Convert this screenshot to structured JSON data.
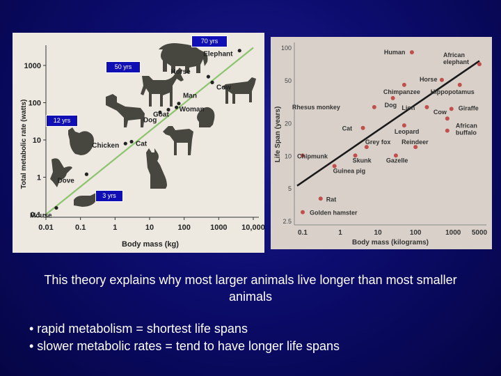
{
  "chart_data": [
    {
      "type": "scatter",
      "xlabel": "Body mass (kg)",
      "ylabel": "Total metabolic rate (watts)",
      "x_scale": "log",
      "y_scale": "log",
      "xticks": [
        "0.01",
        "0.1",
        "1",
        "10",
        "100",
        "1000",
        "10,000"
      ],
      "yticks": [
        "1000",
        "100",
        "10",
        "1",
        "0.1"
      ],
      "points": [
        {
          "label": "Elephant",
          "x": 4000,
          "y": 2500
        },
        {
          "label": "Horse",
          "x": 500,
          "y": 500
        },
        {
          "label": "Cow",
          "x": 650,
          "y": 350
        },
        {
          "label": "Man",
          "x": 70,
          "y": 95
        },
        {
          "label": "Woman",
          "x": 60,
          "y": 75
        },
        {
          "label": "Dog",
          "x": 20,
          "y": 55
        },
        {
          "label": "Goat",
          "x": 35,
          "y": 65
        },
        {
          "label": "Chicken",
          "x": 2,
          "y": 8
        },
        {
          "label": "Cat",
          "x": 3,
          "y": 9
        },
        {
          "label": "Dove",
          "x": 0.15,
          "y": 1.2
        },
        {
          "label": "Mouse",
          "x": 0.02,
          "y": 0.15
        }
      ],
      "fit_line": {
        "x": [
          0.01,
          10000
        ],
        "y": [
          0.1,
          3000
        ]
      },
      "annotations": [
        "70 yrs",
        "50 yrs",
        "12 yrs",
        "3 yrs"
      ]
    },
    {
      "type": "scatter",
      "xlabel": "Body mass (kilograms)",
      "ylabel": "Life Span (years)",
      "x_scale": "log",
      "y_scale": "log",
      "xticks": [
        "0.1",
        "1",
        "10",
        "100",
        "1000",
        "5000"
      ],
      "yticks": [
        "100",
        "50",
        "20",
        "10",
        "5",
        "2.5"
      ],
      "points": [
        {
          "label": "Human",
          "x": 80,
          "y": 90
        },
        {
          "label": "African elephant",
          "x": 5000,
          "y": 70
        },
        {
          "label": "Horse",
          "x": 500,
          "y": 50
        },
        {
          "label": "Chimpanzee",
          "x": 50,
          "y": 45
        },
        {
          "label": "Hippopotamus",
          "x": 1500,
          "y": 45
        },
        {
          "label": "Dog",
          "x": 25,
          "y": 34
        },
        {
          "label": "Rhesus monkey",
          "x": 8,
          "y": 28
        },
        {
          "label": "Lion",
          "x": 200,
          "y": 28
        },
        {
          "label": "Giraffe",
          "x": 900,
          "y": 27
        },
        {
          "label": "Cow",
          "x": 700,
          "y": 22
        },
        {
          "label": "Cat",
          "x": 4,
          "y": 18
        },
        {
          "label": "Leopard",
          "x": 50,
          "y": 19
        },
        {
          "label": "African buffalo",
          "x": 700,
          "y": 17
        },
        {
          "label": "Grey fox",
          "x": 5,
          "y": 12
        },
        {
          "label": "Reindeer",
          "x": 100,
          "y": 12
        },
        {
          "label": "Chipmunk",
          "x": 0.1,
          "y": 10
        },
        {
          "label": "Skunk",
          "x": 2.5,
          "y": 10
        },
        {
          "label": "Gazelle",
          "x": 30,
          "y": 10
        },
        {
          "label": "Guinea pig",
          "x": 0.7,
          "y": 8
        },
        {
          "label": "Rat",
          "x": 0.3,
          "y": 4
        },
        {
          "label": "Golden hamster",
          "x": 0.1,
          "y": 3
        }
      ],
      "fit_line": {
        "x": [
          0.1,
          5000
        ],
        "y": [
          5.5,
          75
        ]
      }
    }
  ],
  "caption": "This theory explains why most larger animals live longer than most smaller animals",
  "bullets": [
    "• rapid metabolism = shortest life spans",
    "• slower metabolic rates = tend to have longer life spans"
  ],
  "colors": {
    "background": "#0c0c6e",
    "tag": "#0f0fb4",
    "fit_left": "#8cc46e",
    "fit_right": "#1a1a1a",
    "point_right": "#c0504d"
  },
  "icons": [
    "elephant-silhouette",
    "horse-silhouette",
    "cow-silhouette",
    "human-head-silhouette",
    "dog-silhouette",
    "goat-silhouette",
    "chicken-silhouette",
    "cat-silhouette",
    "dove-silhouette",
    "mouse-silhouette"
  ]
}
